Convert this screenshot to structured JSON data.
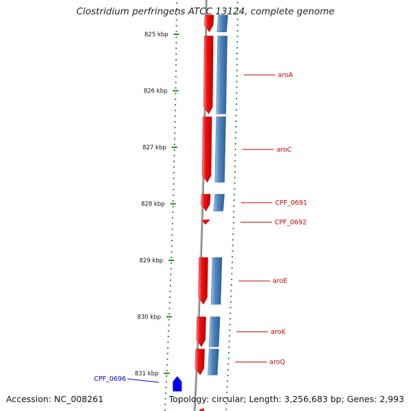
{
  "title": "Clostridium perfringens ATCC 13124, complete genome",
  "footer": {
    "accession": "Accession: NC_008261",
    "summary": "Topology: circular; Length: 3,256,683 bp; Genes: 2,993"
  },
  "scale": {
    "unit": "kbp",
    "ticks": [
      {
        "pos_kbp": 825,
        "label": "825 kbp"
      },
      {
        "pos_kbp": 826,
        "label": "826 kbp"
      },
      {
        "pos_kbp": 827,
        "label": "827 kbp"
      },
      {
        "pos_kbp": 828,
        "label": "828 kbp"
      },
      {
        "pos_kbp": 829,
        "label": "829 kbp"
      },
      {
        "pos_kbp": 830,
        "label": "830 kbp"
      },
      {
        "pos_kbp": 831,
        "label": "831 kbp"
      }
    ]
  },
  "colors": {
    "backbone": "#888888",
    "cds": "#ee1111",
    "gene": "#4f86bf",
    "reverse_feature": "#0000ee",
    "scale_ticks": "#1a8a1a",
    "label_forward": "#cc0000",
    "label_reverse": "#0000cc"
  },
  "features": [
    {
      "label": "",
      "start_kbp": 824.66,
      "end_kbp": 824.96,
      "strand": "+"
    },
    {
      "label": "aroA",
      "start_kbp": 825.03,
      "end_kbp": 826.41,
      "strand": "+"
    },
    {
      "label": "aroC",
      "start_kbp": 826.46,
      "end_kbp": 827.62,
      "strand": "+"
    },
    {
      "label": "CPF_0691",
      "start_kbp": 827.83,
      "end_kbp": 828.13,
      "strand": "+"
    },
    {
      "label": "CPF_0692",
      "start_kbp": 828.28,
      "end_kbp": 828.37,
      "strand": "+"
    },
    {
      "label": "aroE",
      "start_kbp": 828.95,
      "end_kbp": 829.78,
      "strand": "+"
    },
    {
      "label": "aroK",
      "start_kbp": 830.0,
      "end_kbp": 830.53,
      "strand": "+"
    },
    {
      "label": "aroQ",
      "start_kbp": 830.57,
      "end_kbp": 831.03,
      "strand": "+"
    },
    {
      "label": "CPF_0696",
      "start_kbp": 831.05,
      "end_kbp": 831.32,
      "strand": "-"
    }
  ]
}
